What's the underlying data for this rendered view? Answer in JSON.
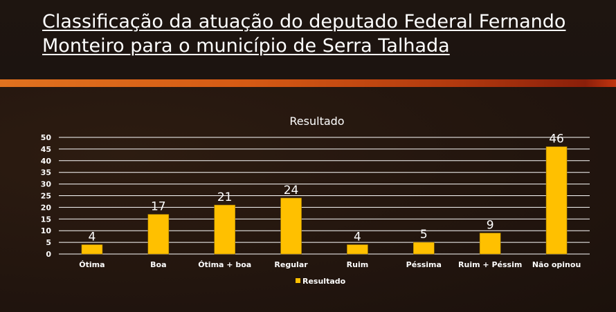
{
  "slide_title": "Classificação da atuação do deputado Federal Fernando Monteiro para o município de Serra Talhada",
  "chart_data": {
    "type": "bar",
    "title": "Resultado",
    "categories": [
      "Ótima",
      "Boa",
      "Ótima + boa",
      "Regular",
      "Ruim",
      "Péssima",
      "Ruim + Péssim",
      "Não opinou"
    ],
    "series": [
      {
        "name": "Resultado",
        "values": [
          4,
          17,
          21,
          24,
          4,
          5,
          9,
          46
        ],
        "color": "#ffc000"
      }
    ],
    "ylim": [
      0,
      50
    ],
    "yticks": [
      0,
      5,
      10,
      15,
      20,
      25,
      30,
      35,
      40,
      45,
      50
    ],
    "grid": true,
    "legend": "bottom",
    "data_labels": true
  }
}
